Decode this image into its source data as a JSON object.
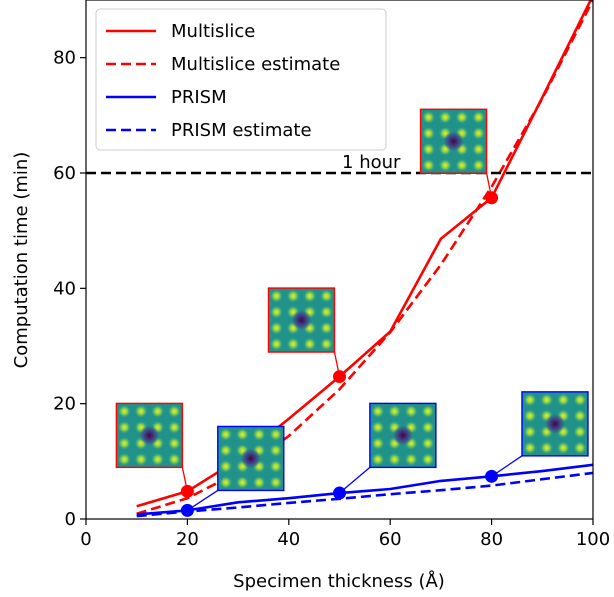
{
  "chart_data": {
    "type": "line",
    "xlabel": "Specimen thickness (Å)",
    "ylabel": "Computation time (min)",
    "xlim": [
      0,
      100
    ],
    "ylim": [
      0,
      90
    ],
    "x_ticks": [
      0,
      20,
      40,
      60,
      80,
      100
    ],
    "y_ticks": [
      0,
      20,
      40,
      60,
      80
    ],
    "grid": false,
    "legend_position": "top-left",
    "series": [
      {
        "name": "Multislice",
        "color": "#ff0000",
        "style": "solid",
        "x": [
          10,
          20,
          30,
          40,
          50,
          60,
          70,
          80,
          90,
          100
        ],
        "y": [
          2.2,
          4.8,
          10.3,
          17.4,
          24.7,
          32.5,
          48.6,
          55.7,
          73.1,
          90.8
        ]
      },
      {
        "name": "Multislice estimate",
        "color": "#ff0000",
        "style": "dashed",
        "x": [
          10,
          20,
          30,
          40,
          50,
          60,
          70,
          80,
          90,
          100
        ],
        "y": [
          0.9,
          3.6,
          8.1,
          14.4,
          22.5,
          32.4,
          44.1,
          57.6,
          72.9,
          90.0
        ]
      },
      {
        "name": "PRISM",
        "color": "#0000ff",
        "style": "solid",
        "x": [
          10,
          20,
          30,
          40,
          50,
          60,
          70,
          80,
          90,
          100
        ],
        "y": [
          0.8,
          1.5,
          2.9,
          3.6,
          4.5,
          5.2,
          6.6,
          7.4,
          8.3,
          9.4
        ]
      },
      {
        "name": "PRISM estimate",
        "color": "#0000ff",
        "style": "dashed",
        "x": [
          10,
          20,
          30,
          40,
          50,
          60,
          70,
          80,
          90,
          100
        ],
        "y": [
          0.5,
          1.3,
          2.0,
          2.8,
          3.5,
          4.3,
          5.0,
          5.8,
          6.9,
          8.0
        ]
      }
    ],
    "reference_line": {
      "y": 60,
      "label": "1 hour",
      "color": "#000000",
      "style": "dashed"
    },
    "markers": [
      {
        "series": "Multislice",
        "x": 20,
        "y": 4.8,
        "color": "#ff0000"
      },
      {
        "series": "Multislice",
        "x": 50,
        "y": 24.7,
        "color": "#ff0000"
      },
      {
        "series": "Multislice",
        "x": 80,
        "y": 55.7,
        "color": "#ff0000"
      },
      {
        "series": "PRISM",
        "x": 20,
        "y": 1.5,
        "color": "#0000ff"
      },
      {
        "series": "PRISM",
        "x": 50,
        "y": 4.5,
        "color": "#0000ff"
      },
      {
        "series": "PRISM",
        "x": 80,
        "y": 7.4,
        "color": "#0000ff"
      }
    ],
    "insets": [
      {
        "name": "inset-multislice-20",
        "border_color": "#ff0000",
        "anchor": {
          "x": 20,
          "y": 4.8
        },
        "center": {
          "x": 12.5,
          "y": 14.5
        }
      },
      {
        "name": "inset-multislice-50",
        "border_color": "#ff0000",
        "anchor": {
          "x": 50,
          "y": 24.7
        },
        "center": {
          "x": 42.5,
          "y": 34.5
        }
      },
      {
        "name": "inset-multislice-80",
        "border_color": "#ff0000",
        "anchor": {
          "x": 80,
          "y": 55.7
        },
        "center": {
          "x": 72.5,
          "y": 65.5
        }
      },
      {
        "name": "inset-prism-20",
        "border_color": "#0000ff",
        "anchor": {
          "x": 20,
          "y": 1.5
        },
        "center": {
          "x": 32.5,
          "y": 10.5
        }
      },
      {
        "name": "inset-prism-50",
        "border_color": "#0000ff",
        "anchor": {
          "x": 50,
          "y": 4.5
        },
        "center": {
          "x": 62.5,
          "y": 14.5
        }
      },
      {
        "name": "inset-prism-80",
        "border_color": "#0000ff",
        "anchor": {
          "x": 80,
          "y": 7.4
        },
        "center": {
          "x": 92.5,
          "y": 16.5
        }
      }
    ]
  }
}
